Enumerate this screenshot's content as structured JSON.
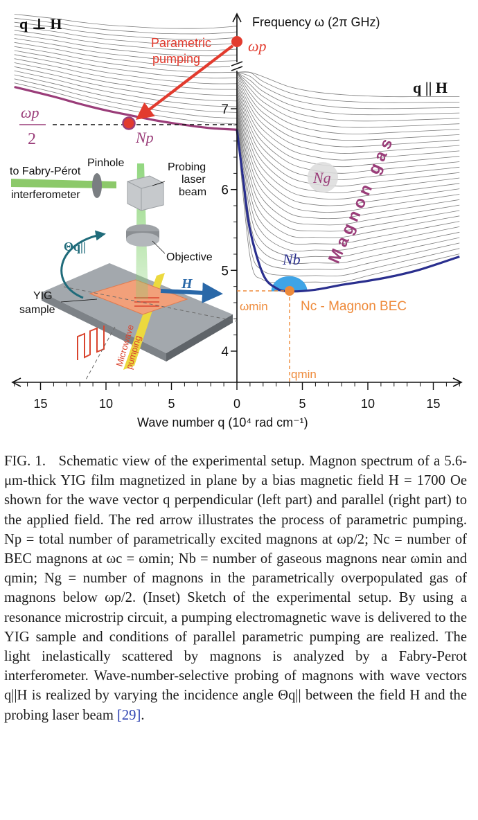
{
  "figure": {
    "label_q_perp_H": "q ⊥ H",
    "label_q_par_H": "q || H",
    "y_axis_label": "Frequency ω (2π GHz)",
    "x_axis_label": "Wave number q (10⁴ rad cm⁻¹)",
    "pump_text_line1": "Parametric",
    "pump_text_line2": "pumping",
    "omega_p_label": "ωp",
    "half_num": "ωp",
    "half_den": "2",
    "Np_label": "Np",
    "Ng_label": "Ng",
    "Nb_label": "Nb",
    "bec_label": "Nc - Magnon BEC",
    "omega_min_label": "ωmin",
    "q_min_label": "qmin",
    "magnon_gas_label": "Magnon gas",
    "inset": {
      "to_fp_line1": "to Fabry-Pérot",
      "to_fp_line2": "interferometer",
      "pinhole": "Pinhole",
      "probing_line1": "Probing",
      "probing_line2": "laser",
      "probing_line3": "beam",
      "objective": "Objective",
      "theta_label": "Θq||",
      "yig_line1": "YIG",
      "yig_line2": "sample",
      "H_label": "H",
      "microwave_line1": "Microwave",
      "microwave_line2": "pumping"
    },
    "colors": {
      "pump_red": "#e23b2e",
      "magenta": "#9a3d79",
      "navy": "#2a2f8e",
      "orange": "#ee8a3a",
      "bec_blue": "#3fa4e6",
      "grid_gray": "#8a8a8a"
    }
  },
  "chart_data": {
    "type": "line",
    "title": "Magnon spectrum of a 5.6-μm-thick YIG film (H = 1700 Oe)",
    "xlabel": "Wave number q (10⁴ rad cm⁻¹)",
    "ylabel": "Frequency ω (2π GHz)",
    "x_ticks": [
      15,
      10,
      5,
      0,
      5,
      10,
      15
    ],
    "y_ticks": [
      4,
      5,
      6,
      7
    ],
    "xlim": [
      -17,
      17
    ],
    "ylim": [
      3.8,
      7.6
    ],
    "series": [
      {
        "name": "q ⊥ H lowest branch",
        "x": [
          -17,
          -14,
          -12,
          -10,
          -8.2,
          -6,
          -4,
          -2,
          0
        ],
        "y": [
          7.27,
          7.15,
          7.06,
          6.98,
          6.92,
          6.85,
          6.8,
          6.76,
          6.74
        ]
      },
      {
        "name": "q || H lowest branch",
        "x": [
          0,
          0.5,
          1,
          2,
          3,
          4,
          6,
          8,
          10,
          12,
          14,
          17
        ],
        "y": [
          6.74,
          6.1,
          5.5,
          4.95,
          4.78,
          4.74,
          4.76,
          4.82,
          4.87,
          4.93,
          5.01,
          5.17
        ]
      }
    ],
    "points": [
      {
        "name": "Np",
        "x": -8.2,
        "y": 6.92
      },
      {
        "name": "Nc",
        "x": 4,
        "y": 4.74
      },
      {
        "name": "omega_p",
        "x": 0,
        "y": 7.8
      }
    ],
    "annotations": [
      "Parametric pumping",
      "Magnon gas",
      "Ng",
      "Nb",
      "Nc - Magnon BEC",
      "ωmin",
      "qmin",
      "ωp/2"
    ]
  },
  "caption": {
    "label": "FIG. 1.",
    "p1": "Schematic view of the experimental setup. Magnon spectrum of a 5.6-μm-thick YIG film magnetized in plane by a bias magnetic field H = 1700 Oe shown for the wave vector q perpendicular (left part) and parallel (right part) to the applied field. The red arrow illustrates the process of parametric pumping. Np = total number of parametrically excited magnons at ωp/2; Nc = number of BEC magnons at ωc = ωmin; Nb = number of gaseous magnons near ωmin and qmin; Ng = number of magnons in the parametrically overpopulated gas of magnons below ωp/2.",
    "p2": "(Inset) Sketch of the experimental setup. By using a resonance microstrip circuit, a pumping electromagnetic wave is delivered to the YIG sample and conditions of parallel parametric pumping are realized. The light inelastically scattered by magnons is analyzed by a Fabry-Perot interferometer. Wave-number-selective probing of magnons with wave vectors q||H is realized by varying the incidence angle Θq|| between the field H and the probing laser beam",
    "cite": "[29]",
    "end": "."
  }
}
